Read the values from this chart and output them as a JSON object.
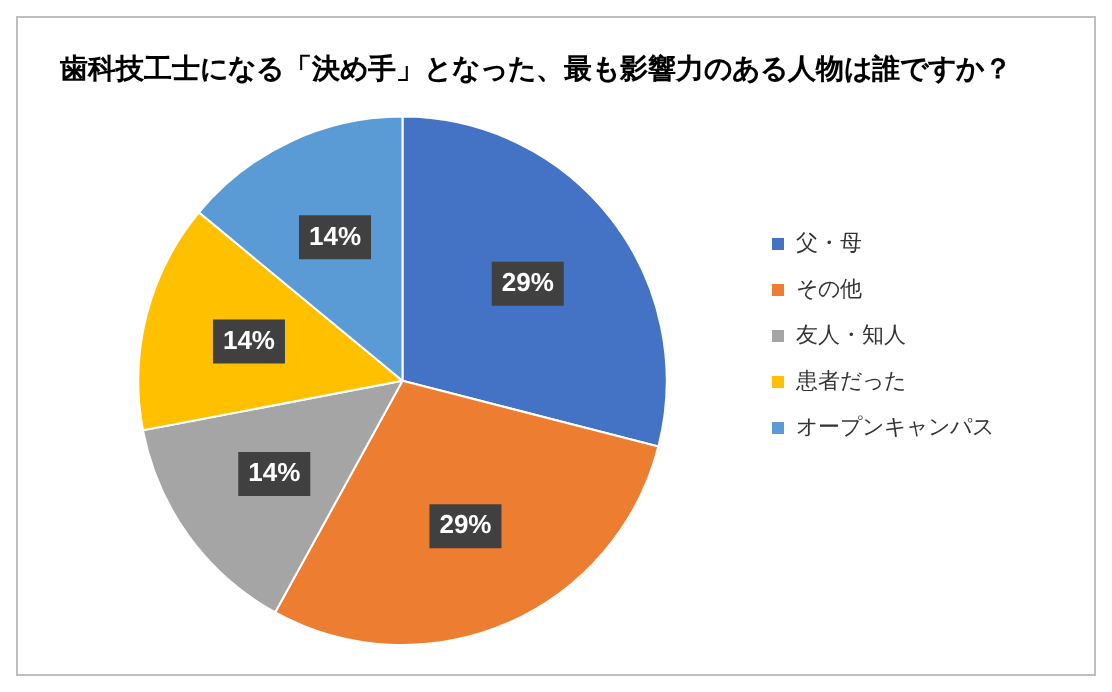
{
  "chart_data": {
    "type": "pie",
    "title": "歯科技工士になる「決め手」となった、最も影響力のある人物は誰ですか？",
    "categories": [
      "父・母",
      "その他",
      "友人・知人",
      "患者だった",
      "オープンキャンパス"
    ],
    "values": [
      29,
      29,
      14,
      14,
      14
    ],
    "colors": [
      "#4472c4",
      "#ed7d31",
      "#a5a5a5",
      "#ffc000",
      "#5b9bd5"
    ],
    "value_labels": [
      "29%",
      "29%",
      "14%",
      "14%",
      "14%"
    ],
    "legend": "right"
  }
}
